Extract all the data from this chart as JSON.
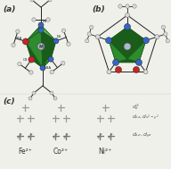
{
  "bg_color": "#f0f0eb",
  "panel_a_label": "(a)",
  "panel_b_label": "(b)",
  "panel_c_label": "(c)",
  "ion_labels": [
    "Fe²⁺",
    "Co²⁺",
    "Ni²⁺"
  ],
  "green_light": "#5cb85c",
  "green_dark": "#1a5c1a",
  "green_mid": "#2e8b2e",
  "blue_atom": "#3366cc",
  "red_atom": "#cc2222",
  "white_atom": "#d8d8d8",
  "dark_atom": "#555555",
  "line_color": "#222222",
  "cross_color": "#999999",
  "cross_half_color": "#777777",
  "font_size_label": 6.5,
  "font_size_ion": 5.5,
  "font_size_d": 4.5
}
